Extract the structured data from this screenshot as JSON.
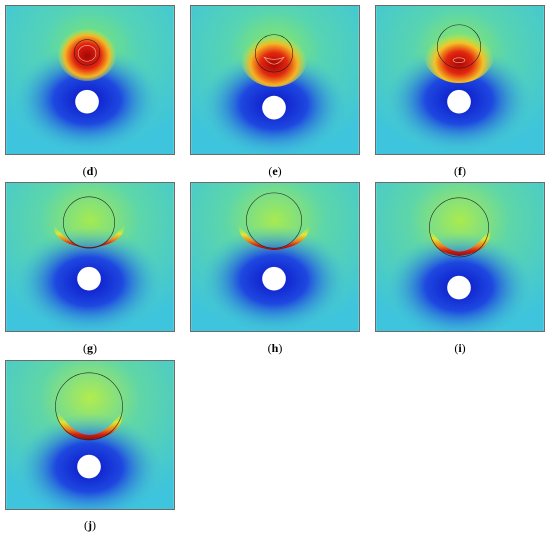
{
  "panels": [
    {
      "id": "d",
      "caption_open": "(",
      "caption_letter": "d",
      "caption_close": ")"
    },
    {
      "id": "e",
      "caption_open": "(",
      "caption_letter": "e",
      "caption_close": ")"
    },
    {
      "id": "f",
      "caption_open": "(",
      "caption_letter": "f",
      "caption_close": ")"
    },
    {
      "id": "g",
      "caption_open": "(",
      "caption_letter": "g",
      "caption_close": ")"
    },
    {
      "id": "h",
      "caption_open": "(",
      "caption_letter": "h",
      "caption_close": ")"
    },
    {
      "id": "i",
      "caption_open": "(",
      "caption_letter": "i",
      "caption_close": ")"
    },
    {
      "id": "j",
      "caption_open": "(",
      "caption_letter": "j",
      "caption_close": ")"
    }
  ],
  "colors": {
    "field_top": "#33d6c8",
    "field_green": "#8fe85a",
    "field_yellow": "#f4e21f",
    "field_red": "#e21a0c",
    "field_darkred": "#9b0707",
    "field_blue": "#1228d8",
    "field_background": "#45c8e0",
    "obstacle": "#ffffff",
    "frame": "#6b6b6b"
  }
}
